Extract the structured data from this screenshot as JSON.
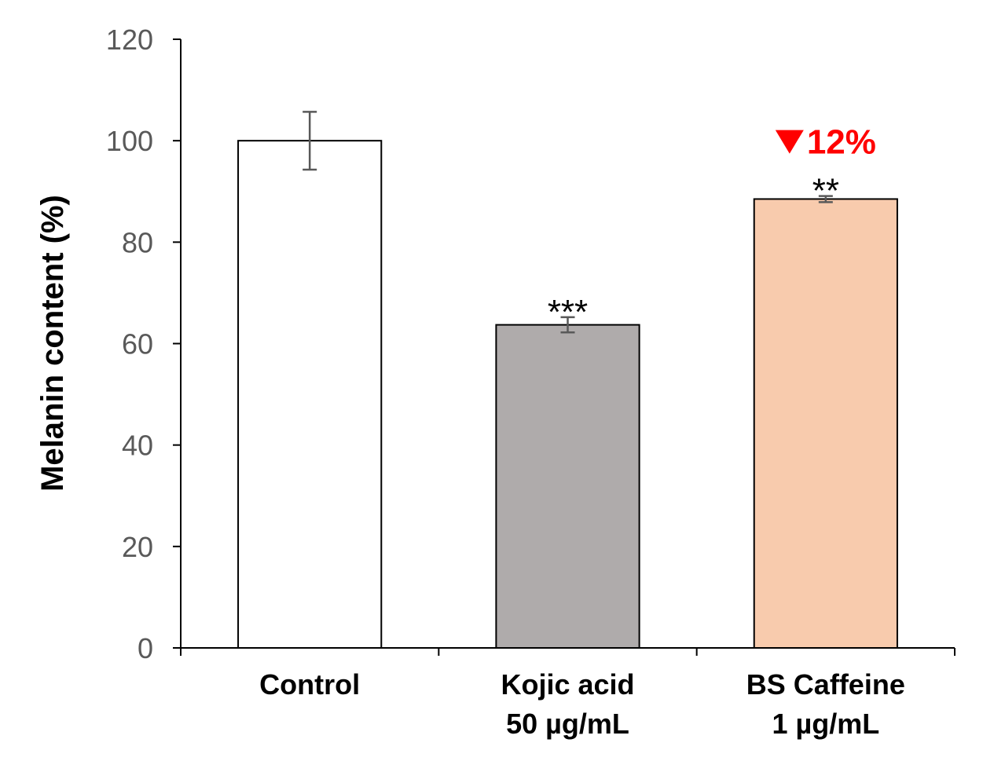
{
  "chart_data": {
    "type": "bar",
    "title": "",
    "xlabel": "",
    "ylabel": "Melanin content (%)",
    "ylim": [
      0,
      120
    ],
    "yticks": [
      0,
      20,
      40,
      60,
      80,
      100,
      120
    ],
    "grid": false,
    "legend": "none",
    "categories": [
      {
        "line1": "Control",
        "line2": ""
      },
      {
        "line1": "Kojic acid",
        "line2": "50 µg/mL"
      },
      {
        "line1": "BS Caffeine",
        "line2": "1 µg/mL"
      }
    ],
    "values": [
      100,
      63.7,
      88.5
    ],
    "errors": [
      5.7,
      1.5,
      0.6
    ],
    "colors": [
      "#ffffff",
      "#afabab",
      "#f8cbad"
    ],
    "significance": [
      "",
      "***",
      "**"
    ],
    "annotations": [
      {
        "category_index": 2,
        "marker": "down-triangle-icon",
        "text": "12%",
        "color": "#ff0000"
      }
    ]
  }
}
